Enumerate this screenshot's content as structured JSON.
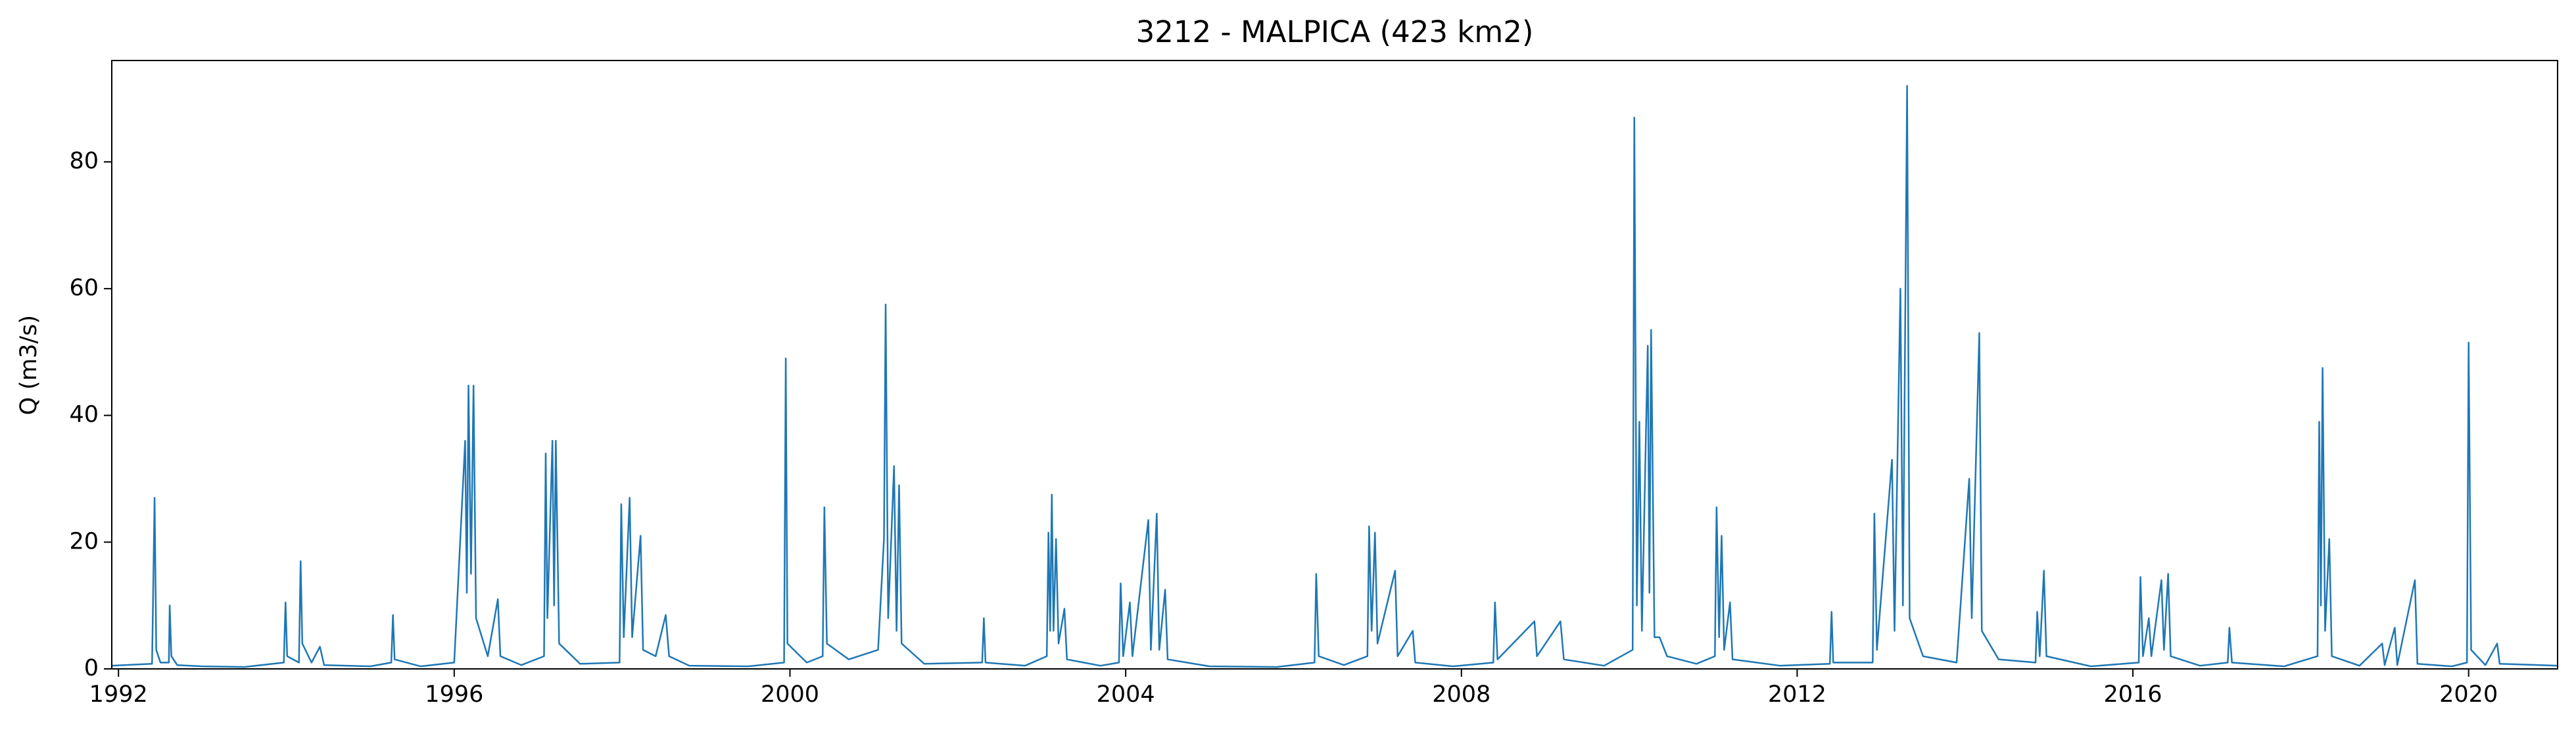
{
  "chart_data": {
    "type": "line",
    "title": "3212 - MALPICA (423 km2)",
    "ylabel": "Q (m3/s)",
    "xlim": [
      1991.92,
      2021.06
    ],
    "xticks": [
      1992,
      1996,
      2000,
      2004,
      2008,
      2012,
      2016,
      2020
    ],
    "ylim": [
      0,
      96
    ],
    "yticks": [
      0,
      20,
      40,
      60,
      80
    ],
    "grid": false,
    "x": [
      1991.92,
      1992.4,
      1992.43,
      1992.45,
      1992.5,
      1992.6,
      1992.61,
      1992.63,
      1992.7,
      1993.0,
      1993.5,
      1993.97,
      1993.99,
      1994.01,
      1994.15,
      1994.17,
      1994.19,
      1994.3,
      1994.4,
      1994.45,
      1995.0,
      1995.25,
      1995.27,
      1995.29,
      1995.6,
      1996.0,
      1996.13,
      1996.15,
      1996.17,
      1996.2,
      1996.23,
      1996.26,
      1996.4,
      1996.52,
      1996.55,
      1996.8,
      1997.07,
      1997.09,
      1997.11,
      1997.17,
      1997.19,
      1997.21,
      1997.25,
      1997.5,
      1997.97,
      1997.99,
      1998.02,
      1998.09,
      1998.12,
      1998.22,
      1998.25,
      1998.4,
      1998.52,
      1998.56,
      1998.8,
      1999.5,
      1999.93,
      1999.95,
      1999.97,
      2000.2,
      2000.39,
      2000.41,
      2000.44,
      2000.7,
      2001.05,
      2001.12,
      2001.14,
      2001.17,
      2001.24,
      2001.27,
      2001.3,
      2001.33,
      2001.6,
      2002.29,
      2002.31,
      2002.33,
      2002.8,
      2003.06,
      2003.08,
      2003.1,
      2003.12,
      2003.14,
      2003.17,
      2003.2,
      2003.27,
      2003.3,
      2003.7,
      2003.92,
      2003.94,
      2003.97,
      2004.05,
      2004.08,
      2004.27,
      2004.3,
      2004.37,
      2004.4,
      2004.47,
      2004.5,
      2005.0,
      2005.8,
      2006.25,
      2006.27,
      2006.3,
      2006.6,
      2006.88,
      2006.9,
      2006.93,
      2006.97,
      2007.0,
      2007.21,
      2007.24,
      2007.42,
      2007.45,
      2007.9,
      2008.38,
      2008.4,
      2008.43,
      2008.87,
      2008.9,
      2009.18,
      2009.22,
      2009.7,
      2010.04,
      2010.06,
      2010.09,
      2010.12,
      2010.15,
      2010.22,
      2010.24,
      2010.26,
      2010.3,
      2010.36,
      2010.45,
      2010.8,
      2011.02,
      2011.04,
      2011.07,
      2011.1,
      2011.13,
      2011.2,
      2011.23,
      2011.8,
      2012.39,
      2012.41,
      2012.43,
      2012.9,
      2012.92,
      2012.95,
      2013.13,
      2013.16,
      2013.23,
      2013.26,
      2013.31,
      2013.34,
      2013.5,
      2013.9,
      2014.05,
      2014.08,
      2014.17,
      2014.2,
      2014.4,
      2014.84,
      2014.86,
      2014.89,
      2014.94,
      2014.97,
      2015.5,
      2016.07,
      2016.09,
      2016.12,
      2016.19,
      2016.22,
      2016.34,
      2016.37,
      2016.42,
      2016.45,
      2016.8,
      2017.13,
      2017.15,
      2017.18,
      2017.8,
      2018.2,
      2018.22,
      2018.24,
      2018.26,
      2018.29,
      2018.34,
      2018.37,
      2018.7,
      2018.97,
      2019.0,
      2019.12,
      2019.15,
      2019.36,
      2019.39,
      2019.8,
      2019.98,
      2020.0,
      2020.03,
      2020.2,
      2020.34,
      2020.37,
      2021.06
    ],
    "series": [
      {
        "color": "#1f77b4",
        "values": [
          0.5,
          0.8,
          27,
          3,
          1,
          1,
          10,
          2,
          0.6,
          0.4,
          0.3,
          1,
          10.5,
          2,
          1,
          17,
          4,
          1,
          3.5,
          0.6,
          0.4,
          1,
          8.5,
          1.5,
          0.4,
          1,
          36,
          12,
          44.7,
          15,
          44.7,
          8,
          2,
          11,
          2,
          0.6,
          2,
          34,
          8,
          36,
          10,
          36,
          4,
          0.8,
          1,
          26,
          5,
          27,
          5,
          21,
          3,
          2,
          8.5,
          2,
          0.5,
          0.4,
          1,
          49,
          4,
          1,
          2,
          25.5,
          4,
          1.5,
          3,
          20.5,
          57.5,
          8,
          32,
          6,
          29,
          4,
          0.8,
          1,
          8,
          1,
          0.5,
          2,
          21.5,
          6,
          27.5,
          6,
          20.5,
          4,
          9.5,
          1.5,
          0.5,
          1,
          13.5,
          2,
          10.5,
          2,
          23.5,
          3,
          24.5,
          3,
          12.5,
          1.5,
          0.4,
          0.3,
          1,
          15,
          2,
          0.6,
          2,
          22.5,
          6,
          21.5,
          4,
          15.5,
          2,
          6,
          1,
          0.4,
          1,
          10.5,
          1.5,
          7.5,
          2,
          7.5,
          1.5,
          0.5,
          3,
          87,
          10,
          39,
          6,
          51,
          12,
          53.5,
          5,
          5,
          2,
          0.8,
          2,
          25.5,
          5,
          21,
          3,
          10.5,
          1.5,
          0.5,
          0.8,
          9,
          1,
          1,
          24.5,
          3,
          33,
          6,
          60,
          10,
          92,
          8,
          2,
          1,
          30,
          8,
          53,
          6,
          1.5,
          1,
          9,
          2,
          15.5,
          2,
          0.4,
          1,
          14.5,
          2,
          8,
          2,
          14,
          3,
          15,
          2,
          0.5,
          1,
          6.5,
          1,
          0.4,
          2,
          39,
          10,
          47.5,
          6,
          20.5,
          2,
          0.5,
          4,
          0.6,
          6.5,
          0.6,
          14,
          0.8,
          0.4,
          1,
          51.5,
          3,
          0.6,
          4,
          0.8,
          0.5
        ]
      }
    ]
  }
}
